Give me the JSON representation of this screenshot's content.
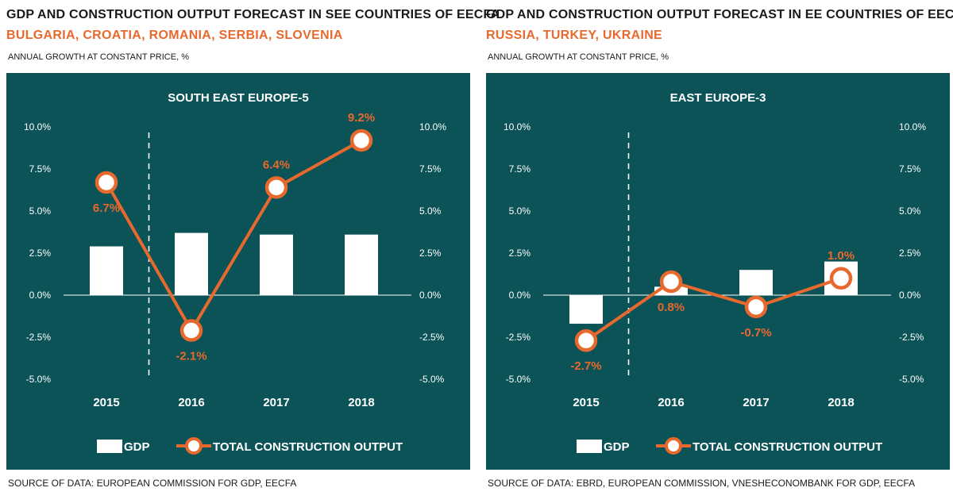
{
  "panels": [
    {
      "title": "GDP AND CONSTRUCTION OUTPUT FORECAST IN SEE COUNTRIES OF EECFA",
      "subtitle": "BULGARIA, CROATIA, ROMANIA, SERBIA, SLOVENIA",
      "units": "ANNUAL GROWTH  AT CONSTANT PRICE, %",
      "source": "SOURCE OF DATA: EUROPEAN COMMISSION FOR GDP, EECFA"
    },
    {
      "title": "GDP AND CONSTRUCTION OUTPUT FORECAST IN EE COUNTRIES OF EECFA",
      "subtitle": "RUSSIA, TURKEY, UKRAINE",
      "units": "ANNUAL GROWTH  AT CONSTANT PRICE, %",
      "source": "SOURCE OF DATA: EBRD, EUROPEAN COMMISSION, VNESHECONOMBANK FOR GDP, EECFA"
    }
  ],
  "colors": {
    "background": "#0b5357",
    "gdp_bar": "#ffffff",
    "construction_line": "#e8692d"
  },
  "chart_data": [
    {
      "type": "bar",
      "title": "SOUTH EAST EUROPE-5",
      "categories": [
        "2015",
        "2016",
        "2017",
        "2018"
      ],
      "series": [
        {
          "name": "GDP",
          "type": "bar",
          "values": [
            2.9,
            3.7,
            3.6,
            3.6
          ]
        },
        {
          "name": "TOTAL CONSTRUCTION OUTPUT",
          "type": "line",
          "values": [
            6.7,
            -2.1,
            6.4,
            9.2
          ],
          "labels": [
            "6.7%",
            "-2.1%",
            "6.4%",
            "9.2%"
          ]
        }
      ],
      "ylim": [
        -5,
        10
      ],
      "yticks": [
        10,
        7.5,
        5,
        2.5,
        0,
        -2.5,
        -5
      ],
      "ytick_labels": [
        "10.0%",
        "7.5%",
        "5.0%",
        "2.5%",
        "0.0%",
        "-2.5%",
        "-5.0%"
      ],
      "label_positions": [
        "below",
        "below",
        "above",
        "above"
      ],
      "forecast_divider_after_index": 0,
      "legend": [
        "GDP",
        "TOTAL CONSTRUCTION OUTPUT"
      ],
      "legend_position": "bottom",
      "grid": false
    },
    {
      "type": "bar",
      "title": "EAST EUROPE-3",
      "categories": [
        "2015",
        "2016",
        "2017",
        "2018"
      ],
      "series": [
        {
          "name": "GDP",
          "type": "bar",
          "values": [
            -1.7,
            0.5,
            1.5,
            2.0
          ]
        },
        {
          "name": "TOTAL CONSTRUCTION OUTPUT",
          "type": "line",
          "values": [
            -2.7,
            0.8,
            -0.7,
            1.0
          ],
          "labels": [
            "-2.7%",
            "0.8%",
            "-0.7%",
            "1.0%"
          ]
        }
      ],
      "ylim": [
        -5,
        10
      ],
      "yticks": [
        10,
        7.5,
        5,
        2.5,
        0,
        -2.5,
        -5
      ],
      "ytick_labels": [
        "10.0%",
        "7.5%",
        "5.0%",
        "2.5%",
        "0.0%",
        "-2.5%",
        "-5.0%"
      ],
      "label_positions": [
        "below",
        "below",
        "below",
        "above"
      ],
      "forecast_divider_after_index": 0,
      "legend": [
        "GDP",
        "TOTAL CONSTRUCTION OUTPUT"
      ],
      "legend_position": "bottom",
      "grid": false
    }
  ]
}
